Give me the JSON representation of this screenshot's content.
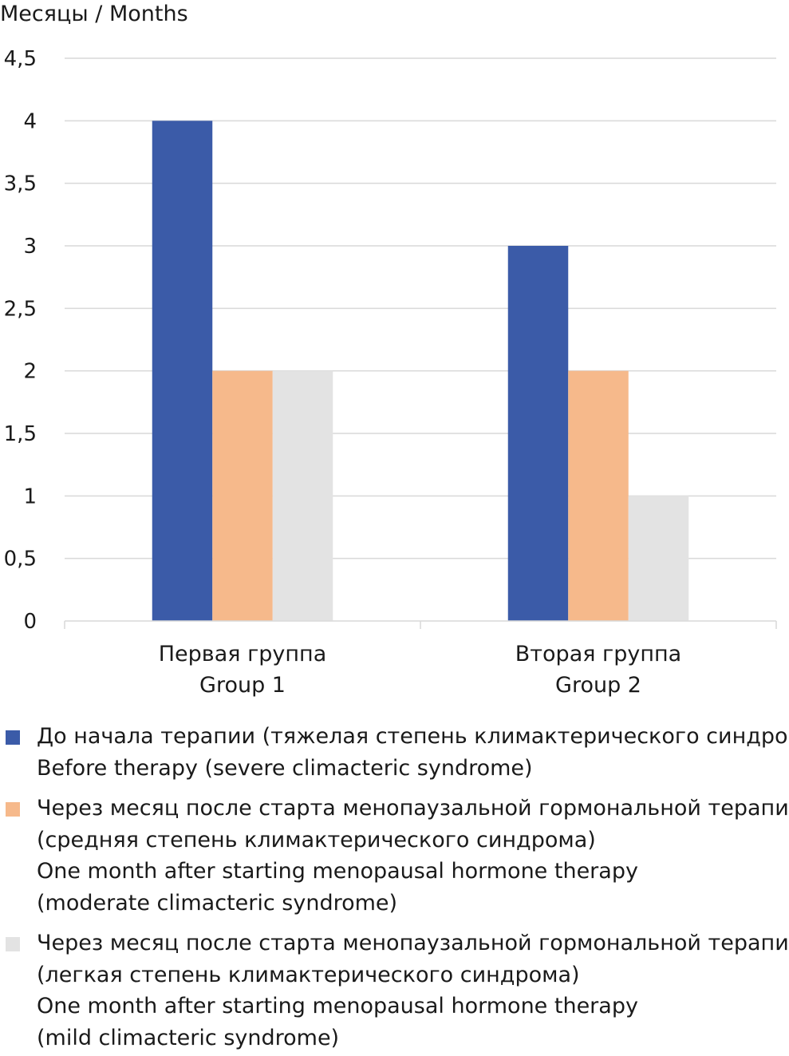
{
  "chart_data": {
    "type": "bar",
    "ylabel": "Месяцы / Months",
    "ylim": [
      0,
      4.5
    ],
    "yticks": [
      "0",
      "0,5",
      "1",
      "1,5",
      "2",
      "2,5",
      "3",
      "3,5",
      "4",
      "4,5"
    ],
    "grid": true,
    "legend_position": "bottom",
    "categories": [
      {
        "line1": "Первая группа",
        "line2": "Group 1"
      },
      {
        "line1": "Вторая группа",
        "line2": "Group 2"
      }
    ],
    "series": [
      {
        "name": "До начала терапии (тяжелая степень климактерического синдрома) Before therapy (severe climacteric syndrome)",
        "legend_lines": [
          "До начала терапии (тяжелая степень климактерического синдрома)",
          "Before therapy (severe climacteric syndrome)"
        ],
        "color": "#3b5ba8",
        "values": [
          4,
          3
        ]
      },
      {
        "name": "Через месяц после старта менопаузальной гормональной терапии (средняя степень климактерического синдрома) One month after starting menopausal hormone therapy (moderate climacteric syndrome)",
        "legend_lines": [
          "Через месяц после старта менопаузальной гормональной терапии",
          "(средняя степень климактерического синдрома)",
          "One month after starting menopausal hormone therapy",
          "(moderate climacteric syndrome)"
        ],
        "color": "#f6b98b",
        "values": [
          2,
          2
        ]
      },
      {
        "name": "Через месяц после старта менопаузальной гормональной терапии (легкая степень климактерического синдрома) One month after starting menopausal hormone therapy (mild climacteric syndrome)",
        "legend_lines": [
          "Через месяц после старта менопаузальной гормональной терапии",
          "(легкая степень климактерического синдрома)",
          "One month after starting menopausal hormone therapy",
          "(mild climacteric syndrome)"
        ],
        "color": "#e3e3e3",
        "values": [
          2,
          1
        ]
      }
    ]
  }
}
